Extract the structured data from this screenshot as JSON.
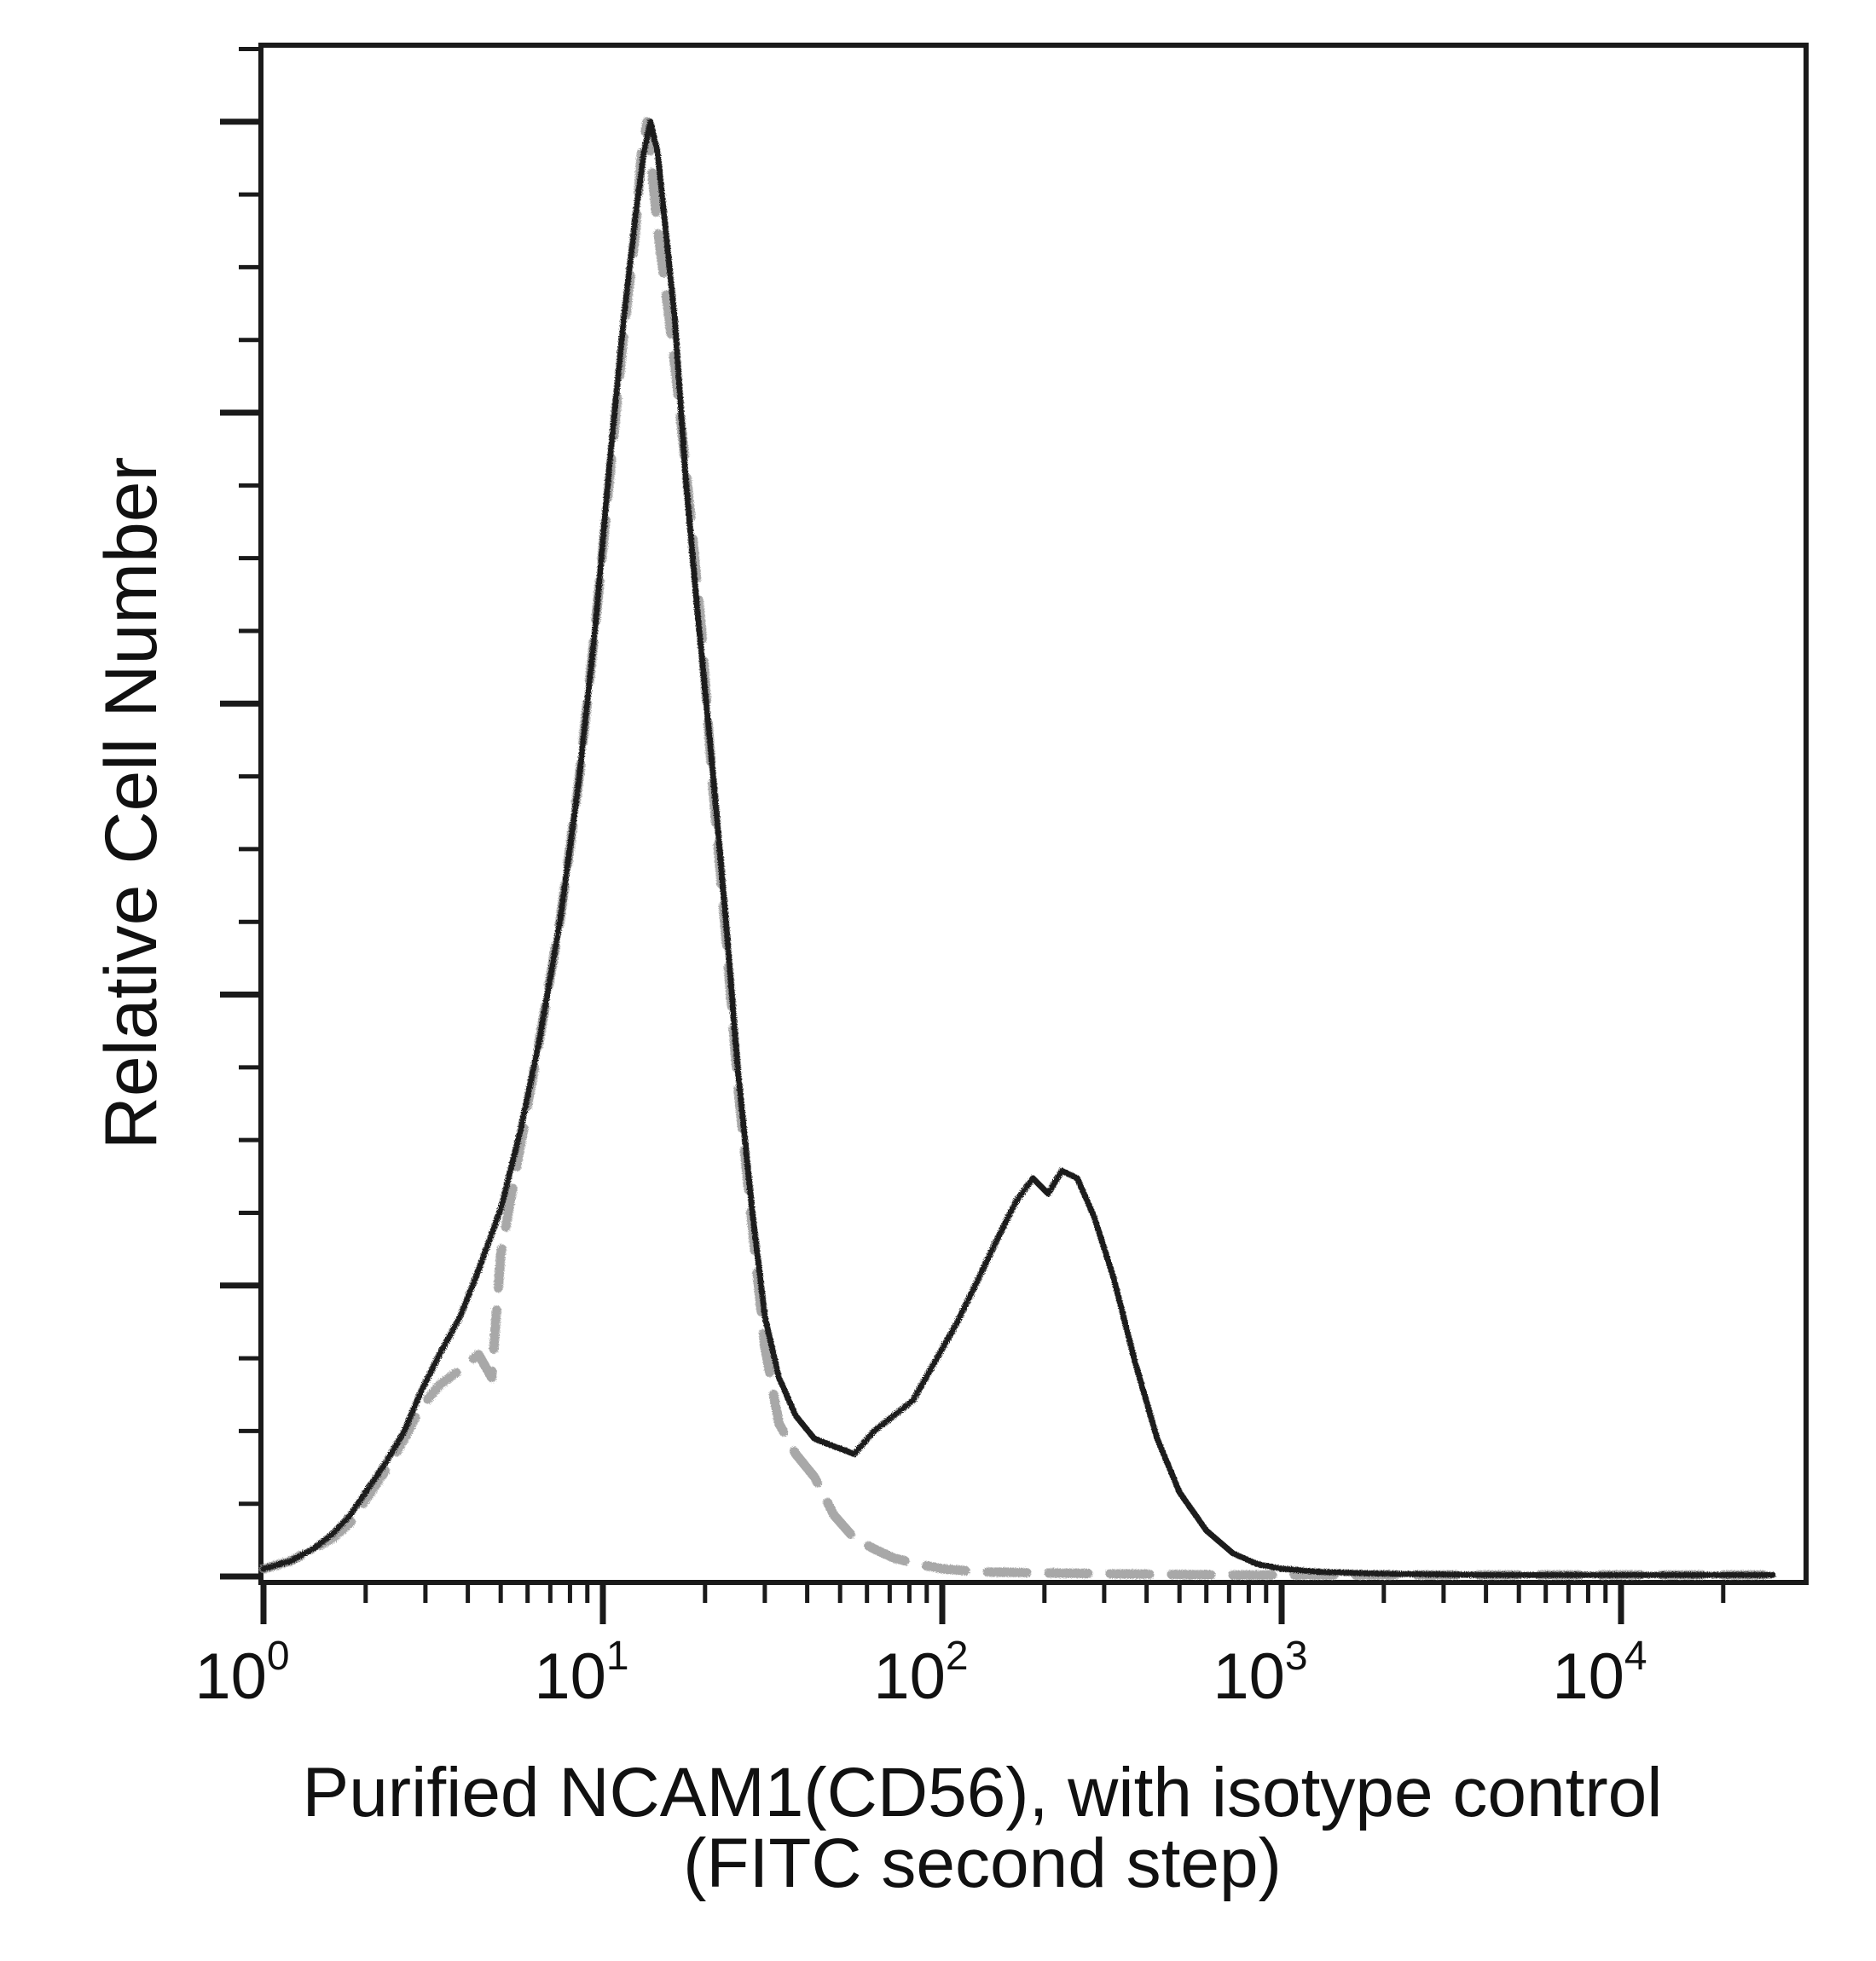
{
  "chart_data": {
    "type": "line",
    "title": "",
    "ylabel": "Relative Cell Number",
    "xlabel_line1": "Purified NCAM1(CD56), with isotype control",
    "xlabel_line2": "(FITC second step)",
    "x_scale": "log",
    "xlim": [
      1,
      28000
    ],
    "ylim": [
      0,
      100
    ],
    "x_tick_labels": [
      {
        "value": 1,
        "base": "10",
        "exp": "0"
      },
      {
        "value": 10,
        "base": "10",
        "exp": "1"
      },
      {
        "value": 100,
        "base": "10",
        "exp": "2"
      },
      {
        "value": 1000,
        "base": "10",
        "exp": "3"
      },
      {
        "value": 10000,
        "base": "10",
        "exp": "4"
      }
    ],
    "y_ticks_major": [
      0,
      19,
      38,
      57,
      76,
      95
    ],
    "y_ticks_minor_step": 4.75,
    "series": [
      {
        "style": "solid",
        "color": "#1a1a1a",
        "x": [
          1.0,
          1.2,
          1.4,
          1.6,
          1.8,
          2.0,
          2.3,
          2.6,
          2.9,
          3.3,
          3.8,
          4.3,
          5.0,
          5.7,
          6.5,
          7.5,
          8.5,
          9.5,
          10.5,
          11.5,
          12.5,
          13.2,
          13.8,
          14.5,
          15.3,
          16.3,
          17.5,
          19.0,
          21.0,
          23.0,
          25.0,
          27.5,
          30.0,
          33.0,
          37.0,
          42.0,
          48.0,
          55.0,
          63.0,
          72.0,
          82.0,
          95.0,
          110.0,
          125.0,
          145.0,
          165.0,
          185.0,
          205.0,
          225.0,
          250.0,
          280.0,
          320.0,
          370.0,
          430.0,
          500.0,
          600.0,
          720.0,
          850.0,
          1000.0,
          1300.0,
          1800.0,
          2500.0,
          4000.0,
          7000.0,
          12000.0,
          20000.0,
          28000.0
        ],
        "y": [
          0.5,
          1.0,
          1.8,
          2.8,
          4.0,
          5.5,
          7.5,
          9.5,
          12.0,
          14.5,
          17.0,
          20.0,
          24.0,
          29.0,
          35.0,
          43.0,
          52.0,
          62.0,
          73.0,
          82.0,
          89.0,
          93.0,
          95.0,
          93.0,
          88.0,
          82.0,
          72.0,
          63.0,
          53.0,
          43.0,
          33.0,
          24.0,
          17.0,
          13.0,
          10.5,
          9.0,
          8.5,
          8.0,
          9.5,
          10.5,
          11.5,
          14.0,
          16.5,
          19.0,
          22.0,
          24.5,
          26.0,
          25.0,
          26.5,
          26.0,
          23.5,
          19.5,
          14.0,
          9.0,
          5.5,
          3.0,
          1.5,
          0.8,
          0.5,
          0.3,
          0.2,
          0.15,
          0.1,
          0.1,
          0.1,
          0.1,
          0.1
        ]
      },
      {
        "style": "dashed",
        "color": "#8c8c8c",
        "x": [
          1.0,
          1.2,
          1.4,
          1.6,
          1.8,
          2.0,
          2.3,
          2.6,
          2.9,
          3.3,
          3.8,
          4.3,
          4.7,
          5.0,
          5.7,
          6.5,
          7.5,
          8.5,
          9.5,
          10.5,
          11.5,
          12.5,
          13.0,
          13.5,
          14.5,
          15.5,
          16.5,
          18.0,
          19.5,
          21.0,
          23.0,
          25.0,
          27.5,
          30.0,
          33.0,
          37.0,
          42.0,
          48.0,
          55.0,
          63.0,
          72.0,
          85.0,
          100.0,
          130.0,
          180.0,
          250.0,
          400.0,
          700.0,
          1500.0,
          4000.0,
          28000.0
        ],
        "y": [
          0.5,
          1.0,
          1.8,
          2.5,
          3.5,
          5.0,
          7.0,
          9.0,
          11.0,
          12.5,
          13.5,
          14.5,
          13.0,
          21.0,
          28.0,
          35.0,
          43.0,
          52.0,
          62.0,
          72.0,
          81.0,
          88.0,
          93.0,
          95.0,
          88.0,
          83.0,
          78.0,
          70.0,
          62.0,
          52.0,
          42.0,
          32.0,
          23.0,
          15.0,
          10.0,
          8.0,
          6.5,
          4.0,
          2.5,
          1.8,
          1.2,
          0.8,
          0.5,
          0.3,
          0.25,
          0.2,
          0.15,
          0.1,
          0.1,
          0.1,
          0.1
        ]
      }
    ]
  }
}
